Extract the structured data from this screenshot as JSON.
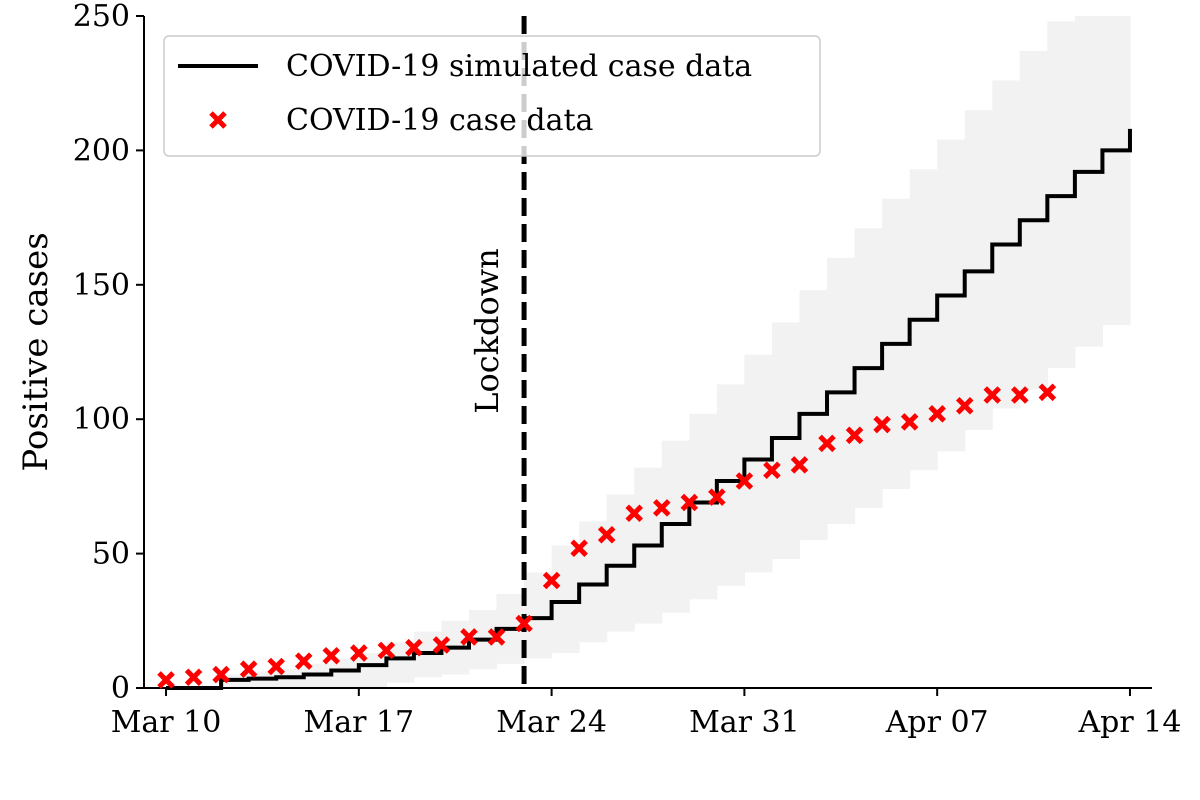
{
  "chart_data": {
    "type": "line",
    "title": "",
    "xlabel": "",
    "ylabel": "Positive cases",
    "xlim": [
      -0.8,
      35.8
    ],
    "ylim": [
      0,
      250
    ],
    "x_ticks": [
      0,
      7,
      14,
      21,
      28,
      35
    ],
    "x_tick_labels": [
      "Mar 10",
      "Mar 17",
      "Mar 24",
      "Mar 31",
      "Apr 07",
      "Apr 14"
    ],
    "y_ticks": [
      0,
      50,
      100,
      150,
      200,
      250
    ],
    "y_tick_labels": [
      "0",
      "50",
      "100",
      "150",
      "200",
      "250"
    ],
    "legend": {
      "position": "top-left",
      "entries": [
        {
          "label": "COVID-19 simulated case data",
          "style": "line",
          "color": "#000000"
        },
        {
          "label": "COVID-19 case data",
          "style": "x-marker",
          "color": "#ff0000"
        }
      ]
    },
    "vline": {
      "x": 13.0,
      "label": "Lockdown",
      "style": "dashed",
      "color": "#000000"
    },
    "series": [
      {
        "name": "COVID-19 simulated case data",
        "type": "step",
        "color": "#000000",
        "x": [
          0,
          1,
          2,
          3,
          4,
          5,
          6,
          7,
          8,
          9,
          10,
          11,
          12,
          13,
          14,
          15,
          16,
          17,
          18,
          19,
          20,
          21,
          22,
          23,
          24,
          25,
          26,
          27,
          28,
          29,
          30,
          31,
          32,
          33,
          34,
          35
        ],
        "y": [
          0,
          0,
          0,
          3,
          3.5,
          4,
          5,
          6.5,
          8.5,
          11,
          13,
          15,
          18,
          22,
          26,
          32,
          38.5,
          45.5,
          53,
          61,
          69,
          77,
          85,
          93,
          102,
          110,
          119,
          128,
          137,
          146,
          155,
          165,
          174,
          183,
          192,
          200
        ]
      },
      {
        "name": "COVID-19 case data",
        "type": "scatter",
        "marker": "x",
        "color": "#ff0000",
        "x": [
          0,
          1,
          2,
          3,
          4,
          5,
          6,
          7,
          8,
          9,
          10,
          11,
          12,
          13,
          14,
          15,
          16,
          17,
          18,
          19,
          20,
          21,
          22,
          23,
          24,
          25,
          26,
          27,
          28,
          29,
          30,
          31,
          32
        ],
        "y": [
          3,
          4,
          5,
          7,
          8,
          10,
          12,
          13,
          14,
          15,
          16,
          19,
          19,
          24,
          40,
          52,
          57,
          65,
          67,
          69,
          71,
          77,
          81,
          83,
          91,
          94,
          98,
          99,
          102,
          105,
          109,
          109,
          110
        ]
      }
    ],
    "band": {
      "name": "Simulation uncertainty",
      "color": "#f2f2f2",
      "x": [
        0,
        1,
        2,
        3,
        4,
        5,
        6,
        7,
        8,
        9,
        10,
        11,
        12,
        13,
        14,
        15,
        16,
        17,
        18,
        19,
        20,
        21,
        22,
        23,
        24,
        25,
        26,
        27,
        28,
        29,
        30,
        31,
        32,
        33,
        34,
        35
      ],
      "lower": [
        0,
        0,
        0,
        0,
        0,
        0,
        0,
        0,
        0,
        2,
        4,
        5,
        7,
        9,
        11,
        13,
        17,
        21,
        24,
        28,
        33,
        38,
        43,
        48,
        55,
        61,
        67,
        74,
        81,
        88,
        96,
        104,
        111,
        119,
        127,
        135
      ],
      "upper": [
        0,
        0,
        0,
        5,
        6,
        7,
        9,
        11,
        13,
        17,
        21,
        25,
        29,
        35,
        43,
        53,
        62,
        72,
        82,
        92,
        102,
        113,
        124,
        136,
        148,
        160,
        171,
        182,
        193,
        204,
        215,
        226,
        237,
        248,
        250,
        250
      ]
    }
  }
}
